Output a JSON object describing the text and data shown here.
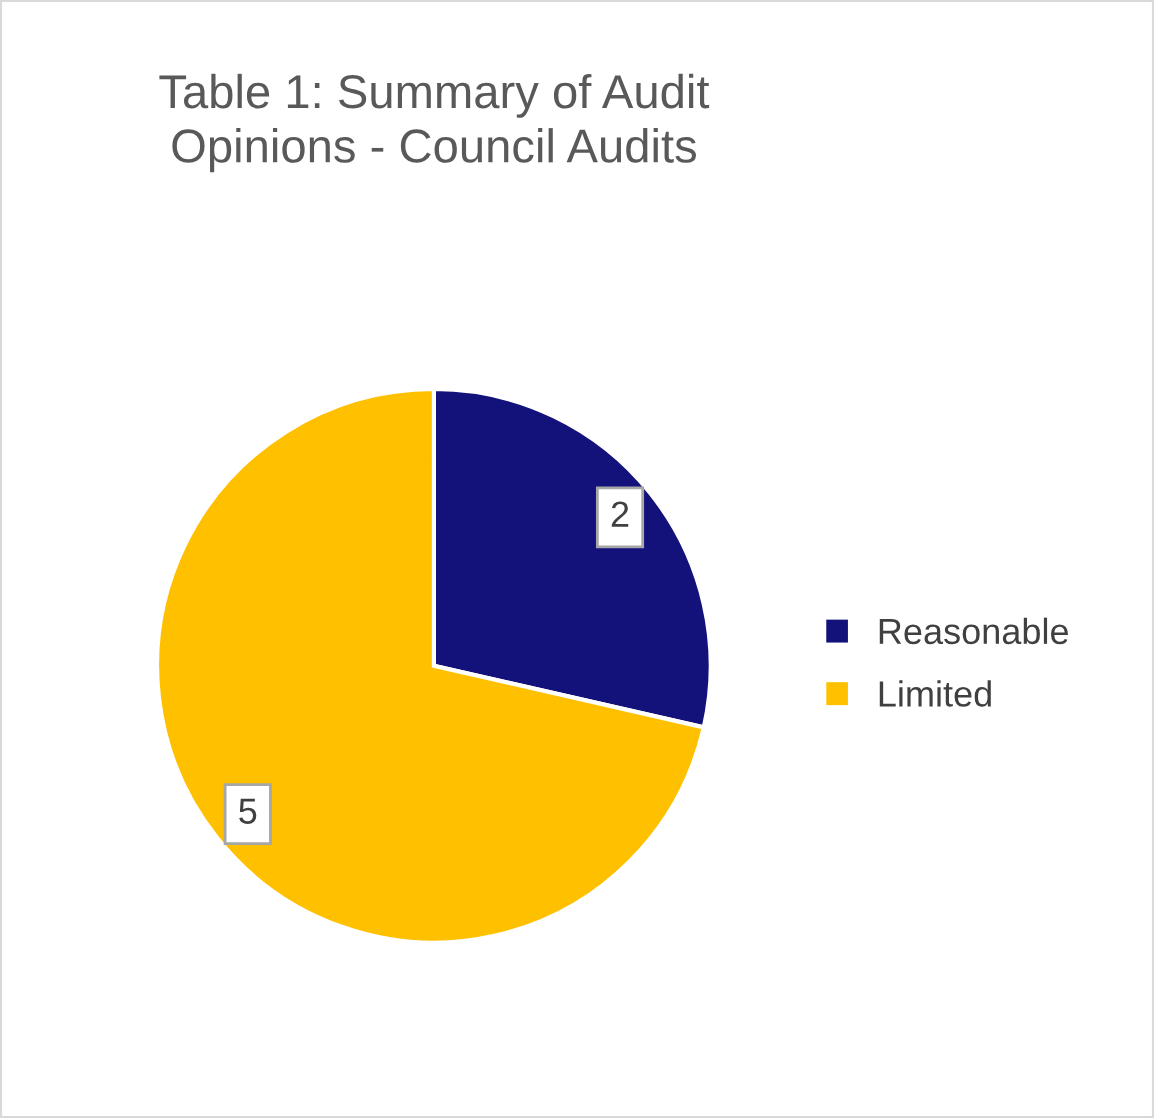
{
  "chart_data": {
    "type": "pie",
    "title": "Table 1: Summary of Audit\nOpinions - Council Audits",
    "categories": [
      "Reasonable",
      "Limited"
    ],
    "values": [
      2,
      5
    ],
    "colors": [
      "#12127a",
      "#ffc000"
    ],
    "data_labels": true,
    "legend": "right"
  }
}
